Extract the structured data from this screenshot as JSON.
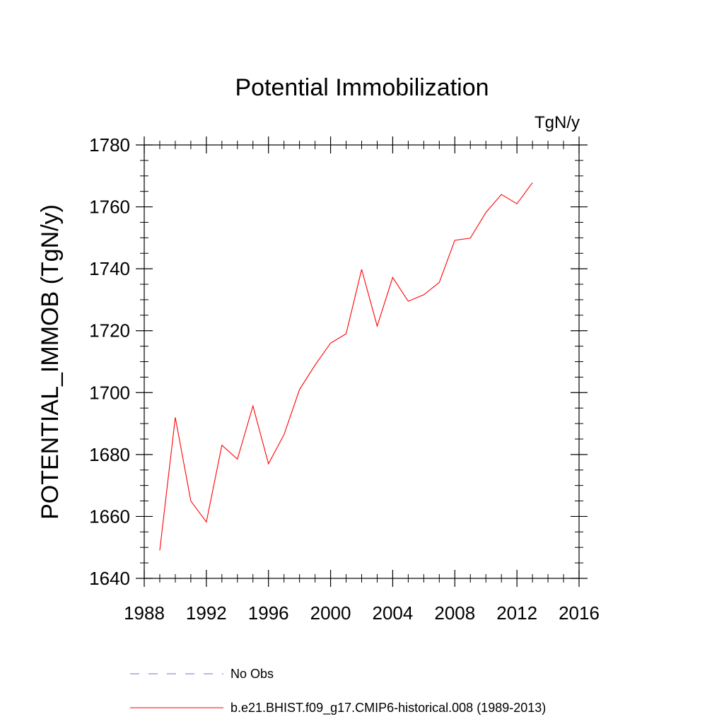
{
  "chart_data": {
    "type": "line",
    "title": "Potential Immobilization",
    "units_label": "TgN/y",
    "ylabel": "POTENTIAL_IMMOB  (TgN/y)",
    "xlabel": "",
    "xlim": [
      1988,
      2016
    ],
    "ylim": [
      1640,
      1780
    ],
    "x_ticks": [
      1988,
      1992,
      1996,
      2000,
      2004,
      2008,
      2012,
      2016
    ],
    "y_ticks": [
      1640,
      1660,
      1680,
      1700,
      1720,
      1740,
      1760,
      1780
    ],
    "x_minor_step": 1,
    "y_minor_step": 5,
    "grid": false,
    "legend_position": "bottom",
    "series": [
      {
        "name": "b.e21.BHIST.f09_g17.CMIP6-historical.008 (1989-2013)",
        "color": "#ff0000",
        "dash": "solid",
        "x": [
          1989,
          1990,
          1991,
          1992,
          1993,
          1994,
          1995,
          1996,
          1997,
          1998,
          1999,
          2000,
          2001,
          2002,
          2003,
          2004,
          2005,
          2006,
          2007,
          2008,
          2009,
          2010,
          2011,
          2012,
          2013
        ],
        "y": [
          1649,
          1692,
          1665,
          1658.2,
          1683,
          1678.5,
          1695.7,
          1677,
          1686.4,
          1701,
          1708.9,
          1716,
          1719,
          1739.8,
          1721.5,
          1737.2,
          1729.5,
          1731.6,
          1735.6,
          1749.2,
          1749.9,
          1758.2,
          1764,
          1761,
          1767.8
        ]
      }
    ],
    "legend": [
      {
        "label": "No Obs",
        "color": "#7b6fd0",
        "dash": "dashed"
      },
      {
        "label": "b.e21.BHIST.f09_g17.CMIP6-historical.008 (1989-2013)",
        "color": "#ff0000",
        "dash": "solid"
      }
    ]
  }
}
